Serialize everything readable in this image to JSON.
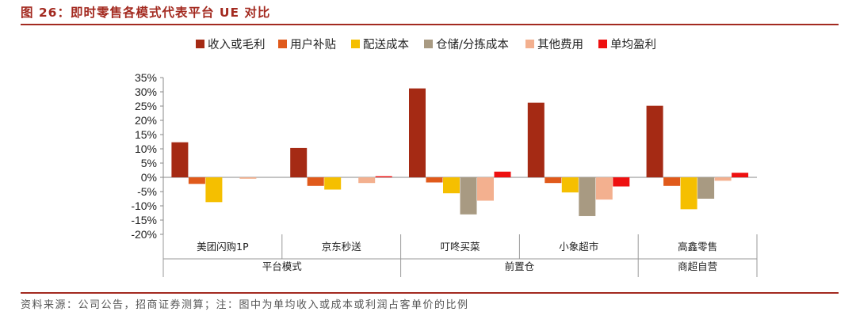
{
  "figure": {
    "title": "图 26：即时零售各模式代表平台 UE 对比",
    "source": "资料来源：公司公告，招商证券测算；注：图中为单均收入或成本或利润占客单价的比例"
  },
  "chart_data": {
    "type": "bar",
    "title": "",
    "xlabel": "",
    "ylabel": "",
    "ylim": [
      -20,
      35
    ],
    "yticks": [
      35,
      30,
      25,
      20,
      15,
      10,
      5,
      0,
      -5,
      -10,
      -15,
      -20
    ],
    "ytick_labels": [
      "35%",
      "30%",
      "25%",
      "20%",
      "15%",
      "10%",
      "5%",
      "0%",
      "-5%",
      "-10%",
      "-15%",
      "-20%"
    ],
    "grid": false,
    "legend_position": "top",
    "categories": [
      "美团闪购1P",
      "京东秒送",
      "叮咚买菜",
      "小象超市",
      "高鑫零售"
    ],
    "groups": [
      {
        "label": "平台模式",
        "categories": [
          "美团闪购1P",
          "京东秒送"
        ]
      },
      {
        "label": "前置仓",
        "categories": [
          "叮咚买菜",
          "小象超市"
        ]
      },
      {
        "label": "商超自营",
        "categories": [
          "高鑫零售"
        ]
      }
    ],
    "series": [
      {
        "name": "收入或毛利",
        "color": "#a52a14",
        "values": [
          12.3,
          10.3,
          31.2,
          26.2,
          25.1
        ]
      },
      {
        "name": "用户补贴",
        "color": "#e05a1b",
        "values": [
          -2.3,
          -3.0,
          -1.8,
          -2.0,
          -3.0
        ]
      },
      {
        "name": "配送成本",
        "color": "#f5bf00",
        "values": [
          -8.7,
          -4.3,
          -5.6,
          -5.3,
          -11.2
        ]
      },
      {
        "name": "仓储/分拣成本",
        "color": "#a89a82",
        "values": [
          0,
          0,
          -13.0,
          -13.6,
          -7.5
        ]
      },
      {
        "name": "其他费用",
        "color": "#f3b08f",
        "values": [
          -0.5,
          -2.0,
          -8.2,
          -7.8,
          -1.2
        ]
      },
      {
        "name": "单均盈利",
        "color": "#ee1010",
        "values": [
          0,
          0.4,
          2.0,
          -3.2,
          1.6
        ]
      }
    ]
  }
}
